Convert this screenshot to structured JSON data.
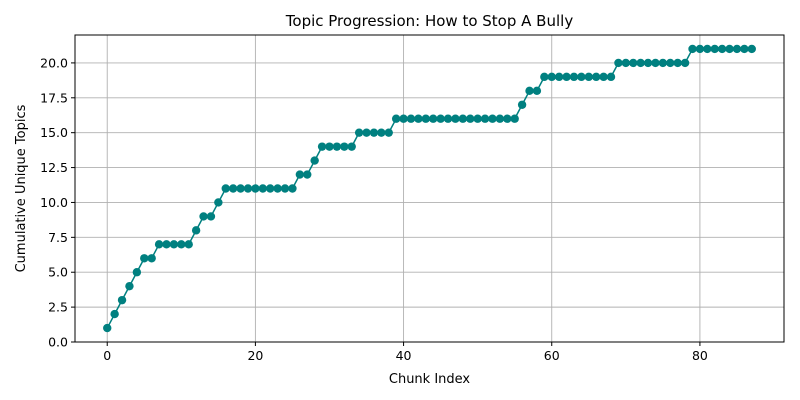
{
  "chart_data": {
    "type": "line",
    "title": "Topic Progression: How to Stop A Bully",
    "xlabel": "Chunk Index",
    "ylabel": "Cumulative Unique Topics",
    "xlim": [
      -4.35,
      91.35
    ],
    "ylim": [
      0,
      22
    ],
    "xticks": [
      0,
      20,
      40,
      60,
      80
    ],
    "xtick_labels": [
      "0",
      "20",
      "40",
      "60",
      "80"
    ],
    "yticks": [
      0,
      2.5,
      5,
      7.5,
      10,
      12.5,
      15,
      17.5,
      20
    ],
    "ytick_labels": [
      "0.0",
      "2.5",
      "5.0",
      "7.5",
      "10.0",
      "12.5",
      "15.0",
      "17.5",
      "20.0"
    ],
    "grid": true,
    "legend": "none",
    "marker": "circle",
    "color": "#008080",
    "series": [
      {
        "x": [
          0,
          1,
          2,
          3,
          4,
          5,
          6,
          7,
          8,
          9,
          10,
          11,
          12,
          13,
          14,
          15,
          16,
          17,
          18,
          19,
          20,
          21,
          22,
          23,
          24,
          25,
          26,
          27,
          28,
          29,
          30,
          31,
          32,
          33,
          34,
          35,
          36,
          37,
          38,
          39,
          40,
          41,
          42,
          43,
          44,
          45,
          46,
          47,
          48,
          49,
          50,
          51,
          52,
          53,
          54,
          55,
          56,
          57,
          58,
          59,
          60,
          61,
          62,
          63,
          64,
          65,
          66,
          67,
          68,
          69,
          70,
          71,
          72,
          73,
          74,
          75,
          76,
          77,
          78,
          79,
          80,
          81,
          82,
          83,
          84,
          85,
          86,
          87
        ],
        "values": [
          1,
          2,
          3,
          4,
          5,
          6,
          6,
          7,
          7,
          7,
          7,
          7,
          8,
          9,
          9,
          10,
          11,
          11,
          11,
          11,
          11,
          11,
          11,
          11,
          11,
          11,
          12,
          12,
          13,
          14,
          14,
          14,
          14,
          14,
          15,
          15,
          15,
          15,
          15,
          16,
          16,
          16,
          16,
          16,
          16,
          16,
          16,
          16,
          16,
          16,
          16,
          16,
          16,
          16,
          16,
          16,
          17,
          18,
          18,
          19,
          19,
          19,
          19,
          19,
          19,
          19,
          19,
          19,
          19,
          20,
          20,
          20,
          20,
          20,
          20,
          20,
          20,
          20,
          20,
          21,
          21,
          21,
          21,
          21,
          21,
          21,
          21,
          21
        ]
      }
    ]
  }
}
